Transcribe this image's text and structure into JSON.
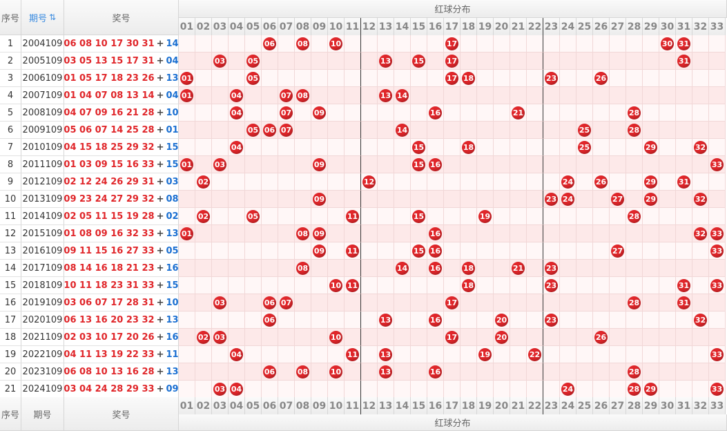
{
  "header": {
    "idx_label": "序号",
    "period_label": "期号",
    "period_sort_icon": "sort-icon",
    "winning_label": "奖号",
    "red_dist_label": "红球分布"
  },
  "footer": {
    "idx_label": "序号",
    "period_label": "期号",
    "winning_label": "奖号",
    "red_dist_label": "红球分布"
  },
  "numbers": [
    "01",
    "02",
    "03",
    "04",
    "05",
    "06",
    "07",
    "08",
    "09",
    "10",
    "11",
    "12",
    "13",
    "14",
    "15",
    "16",
    "17",
    "18",
    "19",
    "20",
    "21",
    "22",
    "23",
    "24",
    "25",
    "26",
    "27",
    "28",
    "29",
    "30",
    "31",
    "32",
    "33"
  ],
  "separator_after": [
    "11",
    "22"
  ],
  "colors": {
    "red_ball": "#e0262a",
    "blue_ball": "#1a6fd1",
    "row_odd": "#fff7f7",
    "row_even": "#fde9e9"
  },
  "rows": [
    {
      "idx": "1",
      "period": "2004109",
      "reds": [
        "06",
        "08",
        "10",
        "17",
        "30",
        "31"
      ],
      "blue": "14"
    },
    {
      "idx": "2",
      "period": "2005109",
      "reds": [
        "03",
        "05",
        "13",
        "15",
        "17",
        "31"
      ],
      "blue": "04"
    },
    {
      "idx": "3",
      "period": "2006109",
      "reds": [
        "01",
        "05",
        "17",
        "18",
        "23",
        "26"
      ],
      "blue": "13"
    },
    {
      "idx": "4",
      "period": "2007109",
      "reds": [
        "01",
        "04",
        "07",
        "08",
        "13",
        "14"
      ],
      "blue": "04"
    },
    {
      "idx": "5",
      "period": "2008109",
      "reds": [
        "04",
        "07",
        "09",
        "16",
        "21",
        "28"
      ],
      "blue": "10"
    },
    {
      "idx": "6",
      "period": "2009109",
      "reds": [
        "05",
        "06",
        "07",
        "14",
        "25",
        "28"
      ],
      "blue": "01"
    },
    {
      "idx": "7",
      "period": "2010109",
      "reds": [
        "04",
        "15",
        "18",
        "25",
        "29",
        "32"
      ],
      "blue": "15"
    },
    {
      "idx": "8",
      "period": "2011109",
      "reds": [
        "01",
        "03",
        "09",
        "15",
        "16",
        "33"
      ],
      "blue": "15"
    },
    {
      "idx": "9",
      "period": "2012109",
      "reds": [
        "02",
        "12",
        "24",
        "26",
        "29",
        "31"
      ],
      "blue": "03"
    },
    {
      "idx": "10",
      "period": "2013109",
      "reds": [
        "09",
        "23",
        "24",
        "27",
        "29",
        "32"
      ],
      "blue": "08"
    },
    {
      "idx": "11",
      "period": "2014109",
      "reds": [
        "02",
        "05",
        "11",
        "15",
        "19",
        "28"
      ],
      "blue": "02"
    },
    {
      "idx": "12",
      "period": "2015109",
      "reds": [
        "01",
        "08",
        "09",
        "16",
        "32",
        "33"
      ],
      "blue": "13"
    },
    {
      "idx": "13",
      "period": "2016109",
      "reds": [
        "09",
        "11",
        "15",
        "16",
        "27",
        "33"
      ],
      "blue": "05"
    },
    {
      "idx": "14",
      "period": "2017109",
      "reds": [
        "08",
        "14",
        "16",
        "18",
        "21",
        "23"
      ],
      "blue": "16"
    },
    {
      "idx": "15",
      "period": "2018109",
      "reds": [
        "10",
        "11",
        "18",
        "23",
        "31",
        "33"
      ],
      "blue": "15"
    },
    {
      "idx": "16",
      "period": "2019109",
      "reds": [
        "03",
        "06",
        "07",
        "17",
        "28",
        "31"
      ],
      "blue": "10"
    },
    {
      "idx": "17",
      "period": "2020109",
      "reds": [
        "06",
        "13",
        "16",
        "20",
        "23",
        "32"
      ],
      "blue": "13"
    },
    {
      "idx": "18",
      "period": "2021109",
      "reds": [
        "02",
        "03",
        "10",
        "17",
        "20",
        "26"
      ],
      "blue": "16"
    },
    {
      "idx": "19",
      "period": "2022109",
      "reds": [
        "04",
        "11",
        "13",
        "19",
        "22",
        "33"
      ],
      "blue": "11"
    },
    {
      "idx": "20",
      "period": "2023109",
      "reds": [
        "06",
        "08",
        "10",
        "13",
        "16",
        "28"
      ],
      "blue": "13"
    },
    {
      "idx": "21",
      "period": "2024109",
      "reds": [
        "03",
        "04",
        "24",
        "28",
        "29",
        "33"
      ],
      "blue": "09"
    }
  ]
}
